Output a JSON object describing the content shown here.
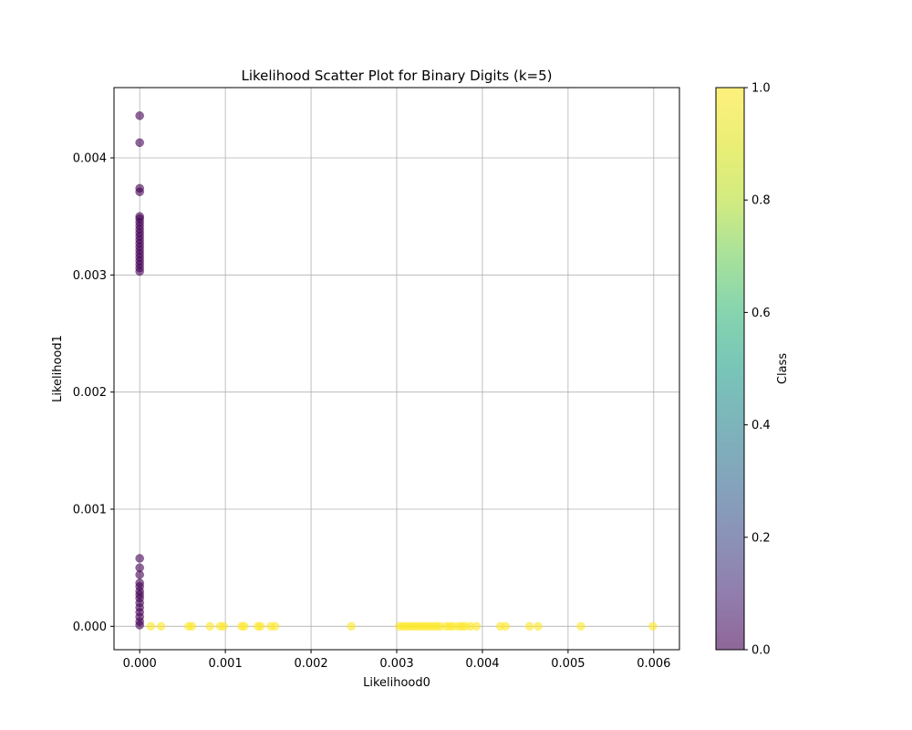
{
  "chart_data": {
    "type": "scatter",
    "title": "Likelihood Scatter Plot for Binary Digits (k=5)",
    "xlabel": "Likelihood0",
    "ylabel": "Likelihood1",
    "xlim": [
      -0.0003,
      0.0063
    ],
    "ylim": [
      -0.0002,
      0.0046
    ],
    "grid": true,
    "xticks": [
      0.0,
      0.001,
      0.002,
      0.003,
      0.004,
      0.005,
      0.006
    ],
    "xtick_labels": [
      "0.000",
      "0.001",
      "0.002",
      "0.003",
      "0.004",
      "0.005",
      "0.006"
    ],
    "yticks": [
      0.0,
      0.001,
      0.002,
      0.003,
      0.004
    ],
    "ytick_labels": [
      "0.000",
      "0.001",
      "0.002",
      "0.003",
      "0.004"
    ],
    "colorbar": {
      "label": "Class",
      "range": [
        0.0,
        1.0
      ],
      "ticks": [
        0.0,
        0.2,
        0.4,
        0.6,
        0.8,
        1.0
      ],
      "tick_labels": [
        "0.0",
        "0.2",
        "0.4",
        "0.6",
        "0.8",
        "1.0"
      ],
      "colormap": "viridis",
      "alpha": 0.6
    },
    "colors": {
      "class0": "#440154",
      "class1": "#fde725"
    },
    "series": [
      {
        "class": 0,
        "points": [
          [
            0,
            0.00436
          ],
          [
            0,
            0.00413
          ],
          [
            0,
            0.00374
          ],
          [
            0,
            0.00371
          ],
          [
            0,
            0.0035
          ],
          [
            0,
            0.00348
          ],
          [
            0,
            0.00345
          ],
          [
            0,
            0.00342
          ],
          [
            0,
            0.00339
          ],
          [
            0,
            0.00336
          ],
          [
            0,
            0.00333
          ],
          [
            0,
            0.0033
          ],
          [
            0,
            0.00327
          ],
          [
            0,
            0.00324
          ],
          [
            0,
            0.00321
          ],
          [
            0,
            0.00318
          ],
          [
            0,
            0.00315
          ],
          [
            0,
            0.00312
          ],
          [
            0,
            0.00309
          ],
          [
            0,
            0.00306
          ],
          [
            0,
            0.00303
          ],
          [
            0,
            0.00058
          ],
          [
            0,
            0.0005
          ],
          [
            0,
            0.00044
          ],
          [
            0,
            0.00037
          ],
          [
            0,
            0.00034
          ],
          [
            0,
            0.0003
          ],
          [
            0,
            0.00027
          ],
          [
            0,
            0.00024
          ],
          [
            0,
            0.0002
          ],
          [
            0,
            0.00016
          ],
          [
            0,
            0.00012
          ],
          [
            0,
            8e-05
          ],
          [
            0,
            4e-05
          ],
          [
            0,
            1e-05
          ]
        ]
      },
      {
        "class": 1,
        "points": [
          [
            0.00013,
            0
          ],
          [
            0.00025,
            0
          ],
          [
            0.00057,
            0
          ],
          [
            0.00061,
            0
          ],
          [
            0.00082,
            0
          ],
          [
            0.00094,
            0
          ],
          [
            0.00098,
            0
          ],
          [
            0.00119,
            0
          ],
          [
            0.00122,
            0
          ],
          [
            0.00138,
            0
          ],
          [
            0.00141,
            0
          ],
          [
            0.00153,
            0
          ],
          [
            0.00158,
            0
          ],
          [
            0.00247,
            0
          ],
          [
            0.00303,
            0
          ],
          [
            0.00307,
            0
          ],
          [
            0.00311,
            0
          ],
          [
            0.00315,
            0
          ],
          [
            0.00319,
            0
          ],
          [
            0.00323,
            0
          ],
          [
            0.00327,
            0
          ],
          [
            0.00331,
            0
          ],
          [
            0.00335,
            0
          ],
          [
            0.00339,
            0
          ],
          [
            0.00343,
            0
          ],
          [
            0.00347,
            0
          ],
          [
            0.00351,
            0
          ],
          [
            0.00358,
            0
          ],
          [
            0.00362,
            0
          ],
          [
            0.00366,
            0
          ],
          [
            0.00372,
            0
          ],
          [
            0.00376,
            0
          ],
          [
            0.0038,
            0
          ],
          [
            0.00386,
            0
          ],
          [
            0.00393,
            0
          ],
          [
            0.00421,
            0
          ],
          [
            0.00427,
            0
          ],
          [
            0.00455,
            0
          ],
          [
            0.00465,
            0
          ],
          [
            0.00515,
            0
          ],
          [
            0.00599,
            0
          ]
        ]
      }
    ]
  }
}
